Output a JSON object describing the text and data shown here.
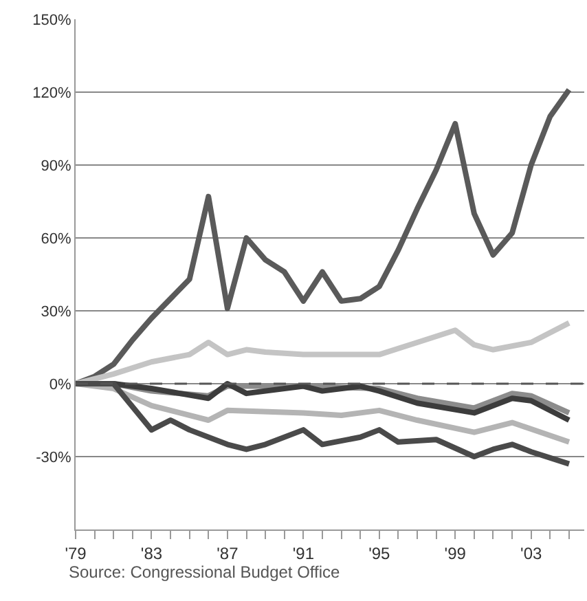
{
  "chart_data": {
    "type": "line",
    "annotations": [
      "Source: Congressional Budget Office"
    ],
    "series": [
      {
        "color": "#5a5a5a",
        "x": [
          1979,
          1980,
          1981,
          1982,
          1983,
          1984,
          1985,
          1986,
          1987,
          1988,
          1989,
          1990,
          1991,
          1992,
          1993,
          1994,
          1995,
          1996,
          1997,
          1998,
          1999,
          2000,
          2001,
          2002,
          2003,
          2004,
          2005
        ],
        "values": [
          0,
          3,
          8,
          18,
          27,
          35,
          43,
          77,
          31,
          60,
          51,
          46,
          34,
          46,
          34,
          35,
          40,
          55,
          72,
          88,
          107,
          70,
          53,
          62,
          90,
          110,
          121
        ]
      },
      {
        "color": "#c4c4c4",
        "x": [
          1979,
          1981,
          1983,
          1985,
          1986,
          1987,
          1988,
          1989,
          1991,
          1993,
          1995,
          1997,
          1999,
          2000,
          2001,
          2003,
          2005
        ],
        "values": [
          0,
          4,
          9,
          12,
          17,
          12,
          14,
          13,
          12,
          12,
          12,
          17,
          22,
          16,
          14,
          17,
          25
        ]
      },
      {
        "color": "#8c8c8c",
        "x": [
          1979,
          1981,
          1983,
          1986,
          1987,
          1991,
          1995,
          1997,
          2000,
          2002,
          2003,
          2005
        ],
        "values": [
          0,
          0,
          -3,
          -5,
          -1,
          -1,
          -2,
          -6,
          -10,
          -4,
          -5,
          -12
        ]
      },
      {
        "color": "#b4b4b4",
        "x": [
          1979,
          1981,
          1983,
          1986,
          1987,
          1991,
          1993,
          1995,
          1997,
          2000,
          2002,
          2005
        ],
        "values": [
          0,
          -2,
          -9,
          -15,
          -11,
          -12,
          -13,
          -11,
          -15,
          -20,
          -16,
          -24
        ]
      },
      {
        "color": "#3c3c3c",
        "x": [
          1979,
          1981,
          1983,
          1986,
          1987,
          1988,
          1991,
          1992,
          1994,
          1995,
          1997,
          2000,
          2002,
          2003,
          2005
        ],
        "values": [
          0,
          0,
          -2,
          -6,
          0,
          -4,
          -1,
          -3,
          -1,
          -3,
          -8,
          -12,
          -6,
          -7,
          -15
        ]
      },
      {
        "color": "#4a4a4a",
        "x": [
          1979,
          1981,
          1983,
          1984,
          1985,
          1987,
          1988,
          1989,
          1991,
          1992,
          1994,
          1995,
          1996,
          1998,
          2000,
          2001,
          2002,
          2003,
          2005
        ],
        "values": [
          0,
          0,
          -19,
          -15,
          -19,
          -25,
          -27,
          -25,
          -19,
          -25,
          -22,
          -19,
          -24,
          -23,
          -30,
          -27,
          -25,
          -28,
          -33
        ]
      }
    ],
    "xlim": [
      1979,
      2005.8
    ],
    "xticks": [
      {
        "value": 1979,
        "label": "'79"
      },
      {
        "value": 1980,
        "label": null
      },
      {
        "value": 1981,
        "label": null
      },
      {
        "value": 1982,
        "label": null
      },
      {
        "value": 1983,
        "label": "'83"
      },
      {
        "value": 1984,
        "label": null
      },
      {
        "value": 1985,
        "label": null
      },
      {
        "value": 1986,
        "label": null
      },
      {
        "value": 1987,
        "label": "'87"
      },
      {
        "value": 1988,
        "label": null
      },
      {
        "value": 1989,
        "label": null
      },
      {
        "value": 1990,
        "label": null
      },
      {
        "value": 1991,
        "label": "'91"
      },
      {
        "value": 1992,
        "label": null
      },
      {
        "value": 1993,
        "label": null
      },
      {
        "value": 1994,
        "label": null
      },
      {
        "value": 1995,
        "label": "'95"
      },
      {
        "value": 1996,
        "label": null
      },
      {
        "value": 1997,
        "label": null
      },
      {
        "value": 1998,
        "label": null
      },
      {
        "value": 1999,
        "label": "'99"
      },
      {
        "value": 2000,
        "label": null
      },
      {
        "value": 2001,
        "label": null
      },
      {
        "value": 2002,
        "label": null
      },
      {
        "value": 2003,
        "label": "'03"
      },
      {
        "value": 2004,
        "label": null
      },
      {
        "value": 2005,
        "label": null
      }
    ],
    "ylim": [
      -60,
      150
    ],
    "yticks": [
      {
        "value": -30,
        "label": "-30%"
      },
      {
        "value": 0,
        "label": "0%"
      },
      {
        "value": 30,
        "label": "30%"
      },
      {
        "value": 60,
        "label": "60%"
      },
      {
        "value": 90,
        "label": "90%"
      },
      {
        "value": 120,
        "label": "120%"
      },
      {
        "value": 150,
        "label": "150%"
      }
    ],
    "ref_lines": [
      {
        "axis": "y",
        "value": 0,
        "line_style": "dashed",
        "color": "#555555"
      }
    ],
    "grid": "y",
    "marker": "none",
    "line_style": "solid"
  }
}
